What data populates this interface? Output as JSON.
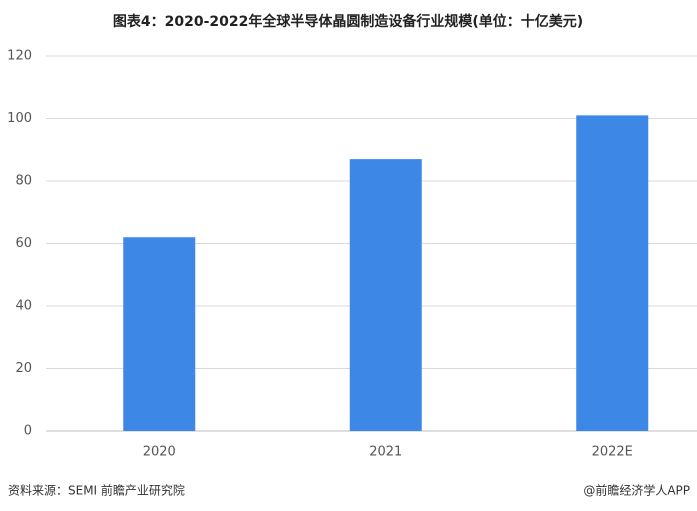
{
  "chart_data": {
    "type": "bar",
    "title": "图表4：2020-2022年全球半导体晶圆制造设备行业规模(单位：十亿美元)",
    "categories": [
      "2020",
      "2021",
      "2022E"
    ],
    "values": [
      62,
      87,
      101
    ],
    "color": "#3d87e6",
    "ylim": [
      0,
      120
    ],
    "yticks": [
      0,
      20,
      40,
      60,
      80,
      100,
      120
    ],
    "grid": true
  },
  "footer": {
    "source": "资料来源：SEMI 前瞻产业研究院",
    "credit": "@前瞻经济学人APP"
  }
}
